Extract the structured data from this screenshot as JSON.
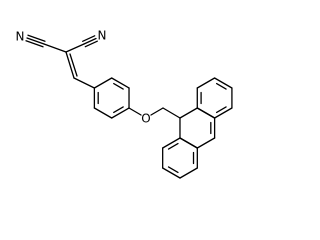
{
  "atoms": [
    {
      "label": "N"
    },
    {
      "label": "N"
    },
    {
      "label": "O"
    }
  ]
}
